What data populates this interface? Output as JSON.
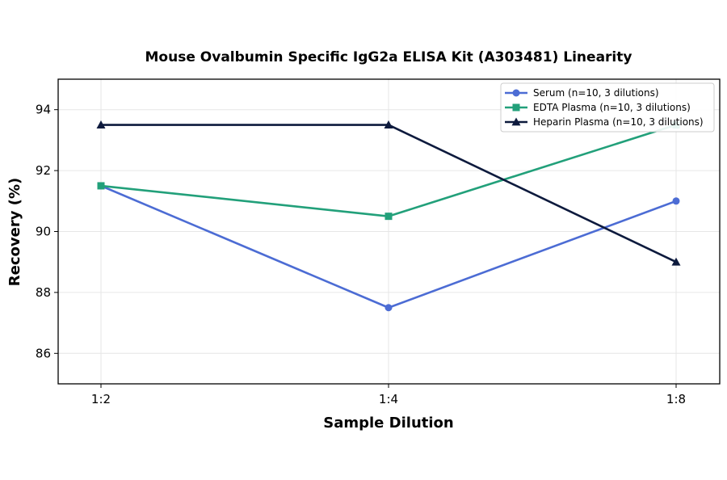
{
  "chart_data": {
    "type": "line",
    "title": "Mouse Ovalbumin Specific IgG2a ELISA Kit (A303481) Linearity",
    "xlabel": "Sample Dilution",
    "ylabel": "Recovery (%)",
    "categories": [
      "1:2",
      "1:4",
      "1:8"
    ],
    "ylim": [
      85,
      95
    ],
    "yticks": [
      86,
      88,
      90,
      92,
      94
    ],
    "grid": true,
    "legend_position": "top-right",
    "series": [
      {
        "name": "Serum (n=10, 3 dilutions)",
        "values": [
          91.5,
          87.5,
          91.0
        ],
        "color": "#4c6cd4",
        "marker": "circle"
      },
      {
        "name": "EDTA Plasma (n=10, 3 dilutions)",
        "values": [
          91.5,
          90.5,
          93.5
        ],
        "color": "#22a07a",
        "marker": "square"
      },
      {
        "name": "Heparin Plasma (n=10, 3 dilutions)",
        "values": [
          93.5,
          93.5,
          89.0
        ],
        "color": "#0d1a3d",
        "marker": "triangle"
      }
    ]
  }
}
